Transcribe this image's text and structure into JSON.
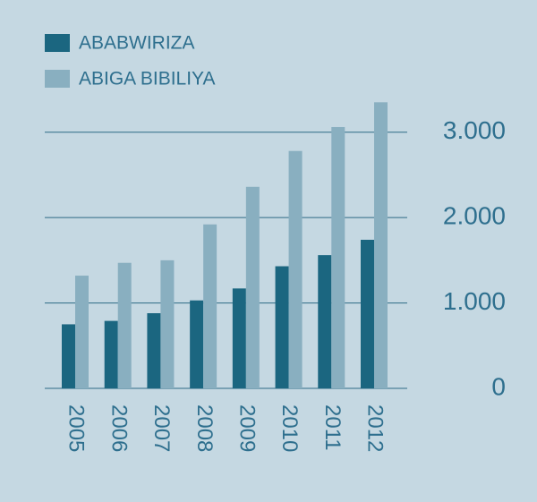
{
  "chart_data": {
    "type": "bar",
    "categories": [
      "2005",
      "2006",
      "2007",
      "2008",
      "2009",
      "2010",
      "2011",
      "2012"
    ],
    "series": [
      {
        "name": "ABABWIRIZA",
        "color": "#1b6680",
        "values": [
          750,
          790,
          880,
          1030,
          1170,
          1430,
          1560,
          1740
        ]
      },
      {
        "name": "ABIGA BIBILIYA",
        "color": "#89afc0",
        "values": [
          1320,
          1470,
          1500,
          1920,
          2360,
          2780,
          3060,
          3350
        ]
      }
    ],
    "ylim": [
      0,
      3500
    ],
    "yticks": [
      0,
      {
        "value": 1000,
        "label": "1.000"
      },
      {
        "value": 2000,
        "label": "2.000"
      },
      {
        "value": 3000,
        "label": "3.000"
      }
    ],
    "grid": true,
    "legend": "top-left"
  }
}
